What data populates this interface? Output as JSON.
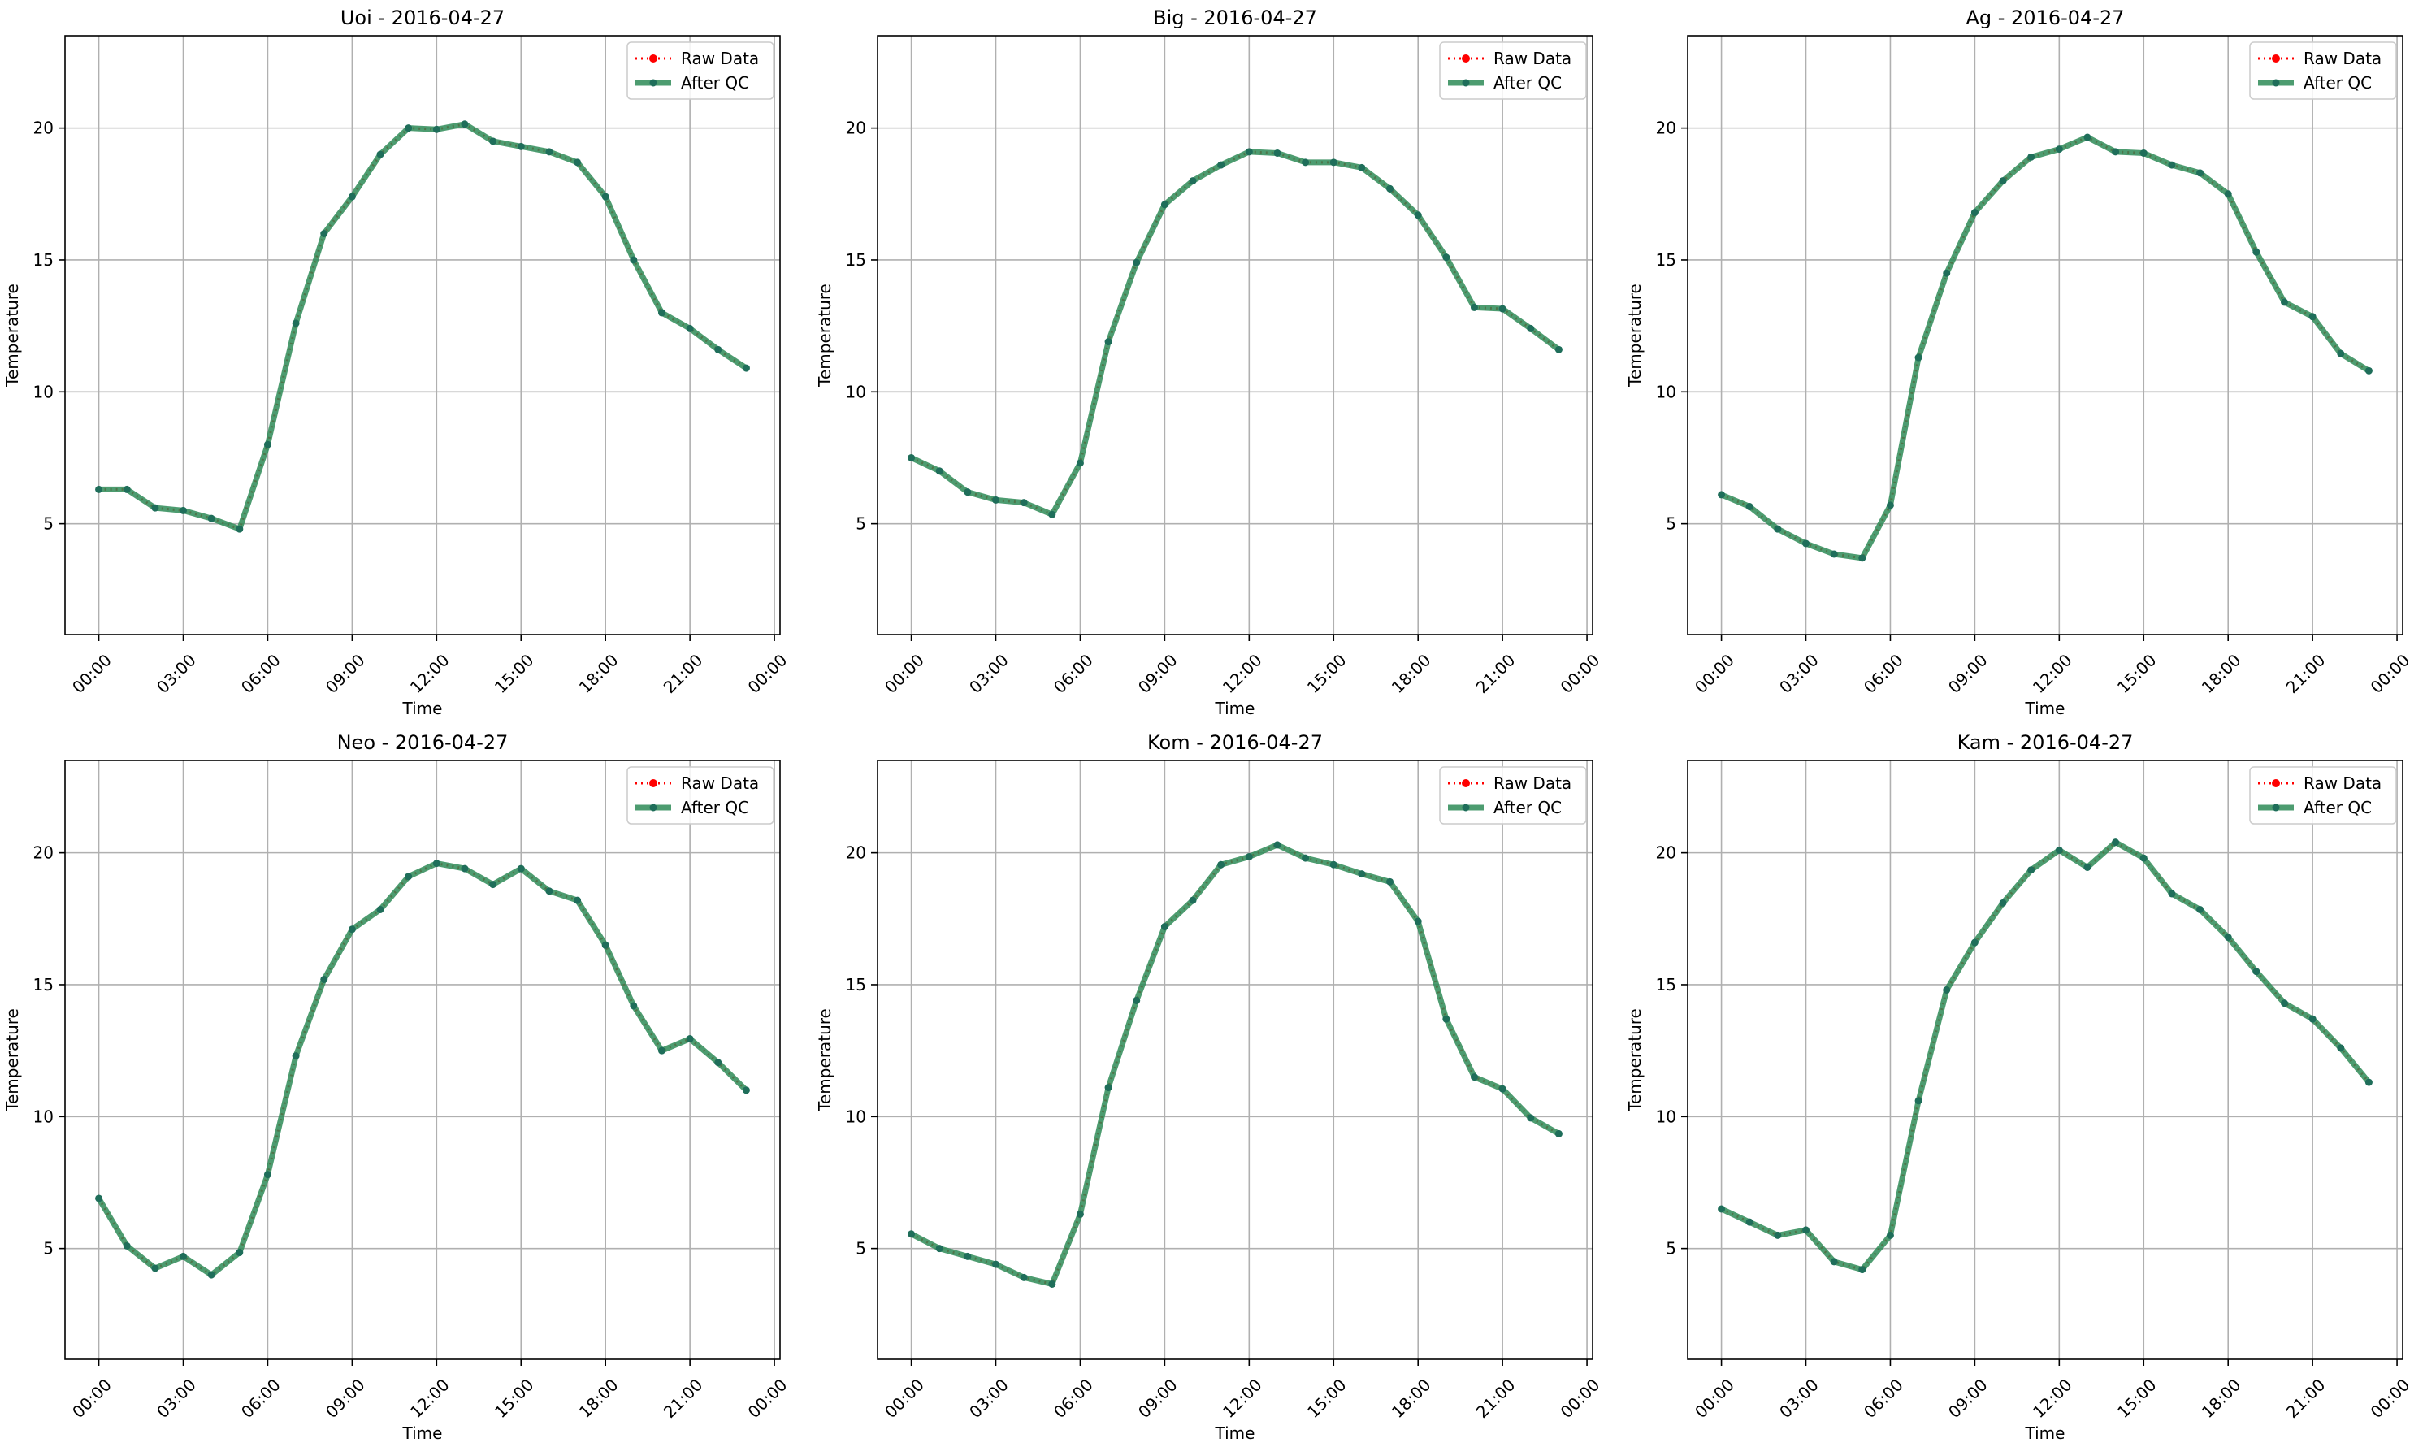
{
  "chart_data": [
    {
      "type": "line",
      "title": "Uoi - 2016-04-27",
      "xlabel": "Time",
      "ylabel": "Temperature",
      "x": [
        0,
        1,
        2,
        3,
        4,
        5,
        6,
        7,
        8,
        9,
        10,
        11,
        12,
        13,
        14,
        15,
        16,
        17,
        18,
        19,
        20,
        21,
        22,
        23
      ],
      "x_ticks": [
        "00:00",
        "03:00",
        "06:00",
        "09:00",
        "12:00",
        "15:00",
        "18:00",
        "21:00",
        "00:00"
      ],
      "y_ticks": [
        5,
        10,
        15,
        20
      ],
      "ylim": [
        0.8,
        23.5
      ],
      "grid": true,
      "legend_position": "top-right",
      "series": [
        {
          "name": "Raw Data",
          "values": [
            6.3,
            6.3,
            5.6,
            5.5,
            5.2,
            4.8,
            8.0,
            12.6,
            16.0,
            17.4,
            19.0,
            20.0,
            19.95,
            20.15,
            19.5,
            19.3,
            19.1,
            18.7,
            17.4,
            15.0,
            13.0,
            12.4,
            11.6,
            10.9
          ]
        },
        {
          "name": "After QC",
          "values": [
            6.3,
            6.3,
            5.6,
            5.5,
            5.2,
            4.8,
            8.0,
            12.6,
            16.0,
            17.4,
            19.0,
            20.0,
            19.95,
            20.15,
            19.5,
            19.3,
            19.1,
            18.7,
            17.4,
            15.0,
            13.0,
            12.4,
            11.6,
            10.9
          ]
        }
      ]
    },
    {
      "type": "line",
      "title": "Big - 2016-04-27",
      "xlabel": "Time",
      "ylabel": "Temperature",
      "x": [
        0,
        1,
        2,
        3,
        4,
        5,
        6,
        7,
        8,
        9,
        10,
        11,
        12,
        13,
        14,
        15,
        16,
        17,
        18,
        19,
        20,
        21,
        22,
        23
      ],
      "x_ticks": [
        "00:00",
        "03:00",
        "06:00",
        "09:00",
        "12:00",
        "15:00",
        "18:00",
        "21:00",
        "00:00"
      ],
      "y_ticks": [
        5,
        10,
        15,
        20
      ],
      "ylim": [
        0.8,
        23.5
      ],
      "grid": true,
      "legend_position": "top-right",
      "series": [
        {
          "name": "Raw Data",
          "values": [
            7.5,
            7.0,
            6.2,
            5.9,
            5.8,
            5.35,
            7.3,
            11.9,
            14.9,
            17.1,
            18.0,
            18.6,
            19.1,
            19.05,
            18.7,
            18.7,
            18.5,
            17.7,
            16.7,
            15.1,
            13.2,
            13.15,
            12.4,
            11.6
          ]
        },
        {
          "name": "After QC",
          "values": [
            7.5,
            7.0,
            6.2,
            5.9,
            5.8,
            5.35,
            7.3,
            11.9,
            14.9,
            17.1,
            18.0,
            18.6,
            19.1,
            19.05,
            18.7,
            18.7,
            18.5,
            17.7,
            16.7,
            15.1,
            13.2,
            13.15,
            12.4,
            11.6
          ]
        }
      ]
    },
    {
      "type": "line",
      "title": "Ag - 2016-04-27",
      "xlabel": "Time",
      "ylabel": "Temperature",
      "x": [
        0,
        1,
        2,
        3,
        4,
        5,
        6,
        7,
        8,
        9,
        10,
        11,
        12,
        13,
        14,
        15,
        16,
        17,
        18,
        19,
        20,
        21,
        22,
        23
      ],
      "x_ticks": [
        "00:00",
        "03:00",
        "06:00",
        "09:00",
        "12:00",
        "15:00",
        "18:00",
        "21:00",
        "00:00"
      ],
      "y_ticks": [
        5,
        10,
        15,
        20
      ],
      "ylim": [
        0.8,
        23.5
      ],
      "grid": true,
      "legend_position": "top-right",
      "series": [
        {
          "name": "Raw Data",
          "values": [
            6.1,
            5.65,
            4.8,
            4.25,
            3.85,
            3.7,
            5.7,
            11.3,
            14.5,
            16.8,
            18.0,
            18.9,
            19.2,
            19.65,
            19.1,
            19.05,
            18.6,
            18.3,
            17.5,
            15.3,
            13.4,
            12.85,
            11.45,
            10.8
          ]
        },
        {
          "name": "After QC",
          "values": [
            6.1,
            5.65,
            4.8,
            4.25,
            3.85,
            3.7,
            5.7,
            11.3,
            14.5,
            16.8,
            18.0,
            18.9,
            19.2,
            19.65,
            19.1,
            19.05,
            18.6,
            18.3,
            17.5,
            15.3,
            13.4,
            12.85,
            11.45,
            10.8
          ]
        }
      ]
    },
    {
      "type": "line",
      "title": "Neo - 2016-04-27",
      "xlabel": "Time",
      "ylabel": "Temperature",
      "x": [
        0,
        1,
        2,
        3,
        4,
        5,
        6,
        7,
        8,
        9,
        10,
        11,
        12,
        13,
        14,
        15,
        16,
        17,
        18,
        19,
        20,
        21,
        22,
        23
      ],
      "x_ticks": [
        "00:00",
        "03:00",
        "06:00",
        "09:00",
        "12:00",
        "15:00",
        "18:00",
        "21:00",
        "00:00"
      ],
      "y_ticks": [
        5,
        10,
        15,
        20
      ],
      "ylim": [
        0.8,
        23.5
      ],
      "grid": true,
      "legend_position": "top-right",
      "series": [
        {
          "name": "Raw Data",
          "values": [
            6.9,
            5.1,
            4.25,
            4.7,
            4.0,
            4.85,
            7.8,
            12.3,
            15.2,
            17.1,
            17.85,
            19.1,
            19.6,
            19.4,
            18.8,
            19.4,
            18.55,
            18.2,
            16.5,
            14.2,
            12.5,
            12.95,
            12.05,
            11.0
          ]
        },
        {
          "name": "After QC",
          "values": [
            6.9,
            5.1,
            4.25,
            4.7,
            4.0,
            4.85,
            7.8,
            12.3,
            15.2,
            17.1,
            17.85,
            19.1,
            19.6,
            19.4,
            18.8,
            19.4,
            18.55,
            18.2,
            16.5,
            14.2,
            12.5,
            12.95,
            12.05,
            11.0
          ]
        }
      ]
    },
    {
      "type": "line",
      "title": "Kom - 2016-04-27",
      "xlabel": "Time",
      "ylabel": "Temperature",
      "x": [
        0,
        1,
        2,
        3,
        4,
        5,
        6,
        7,
        8,
        9,
        10,
        11,
        12,
        13,
        14,
        15,
        16,
        17,
        18,
        19,
        20,
        21,
        22,
        23
      ],
      "x_ticks": [
        "00:00",
        "03:00",
        "06:00",
        "09:00",
        "12:00",
        "15:00",
        "18:00",
        "21:00",
        "00:00"
      ],
      "y_ticks": [
        5,
        10,
        15,
        20
      ],
      "ylim": [
        0.8,
        23.5
      ],
      "grid": true,
      "legend_position": "top-right",
      "series": [
        {
          "name": "Raw Data",
          "values": [
            5.55,
            5.0,
            4.7,
            4.4,
            3.9,
            3.65,
            6.3,
            11.1,
            14.4,
            17.2,
            18.2,
            19.55,
            19.85,
            20.3,
            19.8,
            19.55,
            19.2,
            18.9,
            17.4,
            13.7,
            11.5,
            11.05,
            9.95,
            9.35
          ]
        },
        {
          "name": "After QC",
          "values": [
            5.55,
            5.0,
            4.7,
            4.4,
            3.9,
            3.65,
            6.3,
            11.1,
            14.4,
            17.2,
            18.2,
            19.55,
            19.85,
            20.3,
            19.8,
            19.55,
            19.2,
            18.9,
            17.4,
            13.7,
            11.5,
            11.05,
            9.95,
            9.35
          ]
        }
      ]
    },
    {
      "type": "line",
      "title": "Kam - 2016-04-27",
      "xlabel": "Time",
      "ylabel": "Temperature",
      "x": [
        0,
        1,
        2,
        3,
        4,
        5,
        6,
        7,
        8,
        9,
        10,
        11,
        12,
        13,
        14,
        15,
        16,
        17,
        18,
        19,
        20,
        21,
        22,
        23
      ],
      "x_ticks": [
        "00:00",
        "03:00",
        "06:00",
        "09:00",
        "12:00",
        "15:00",
        "18:00",
        "21:00",
        "00:00"
      ],
      "y_ticks": [
        5,
        10,
        15,
        20
      ],
      "ylim": [
        0.8,
        23.5
      ],
      "grid": true,
      "legend_position": "top-right",
      "series": [
        {
          "name": "Raw Data",
          "values": [
            6.5,
            6.0,
            5.5,
            5.7,
            4.5,
            4.2,
            5.5,
            10.6,
            14.8,
            16.6,
            18.1,
            19.35,
            20.1,
            19.45,
            20.4,
            19.8,
            18.45,
            17.85,
            16.8,
            15.5,
            14.3,
            13.7,
            12.6,
            11.3
          ]
        },
        {
          "name": "After QC",
          "values": [
            6.5,
            6.0,
            5.5,
            5.7,
            4.5,
            4.2,
            5.5,
            10.6,
            14.8,
            16.6,
            18.1,
            19.35,
            20.1,
            19.45,
            20.4,
            19.8,
            18.45,
            17.85,
            16.8,
            15.5,
            14.3,
            13.7,
            12.6,
            11.3
          ]
        }
      ]
    }
  ],
  "style": {
    "raw_color": "#ff0000",
    "qc_color": "#2e8b57",
    "qc_marker_color": "#1f6e5a",
    "grid_color": "#b0b0b0",
    "axis_color": "#000000"
  }
}
